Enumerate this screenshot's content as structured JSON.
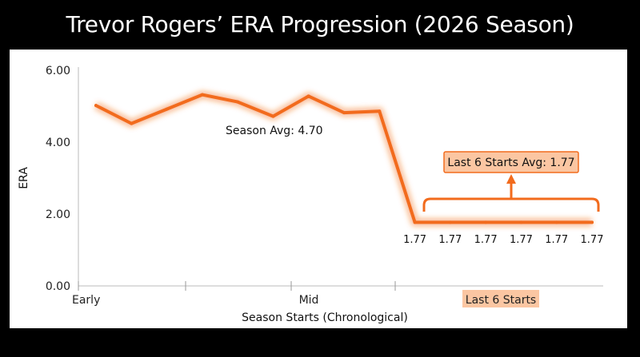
{
  "title": "Trevor Rogers’ ERA Progression (2026 Season)",
  "colors": {
    "line": "#f26b1d",
    "highlight_fill": "#fbc6a2",
    "highlight_stroke": "#f26b1d",
    "background": "#000000",
    "panel": "#ffffff"
  },
  "chart_data": {
    "type": "line",
    "title": "Trevor Rogers’ ERA Progression (2026 Season)",
    "xlabel": "Season Starts (Chronological)",
    "ylabel": "ERA",
    "ylim": [
      0,
      6
    ],
    "yticks": [
      "0.00",
      "2.00",
      "4.00",
      "6.00"
    ],
    "xtick_labels": [
      "Early",
      "Mid",
      "Last 6 Starts"
    ],
    "grid": false,
    "series": [
      {
        "values": [
          5.02,
          4.52,
          4.92,
          5.32,
          5.12,
          4.72,
          5.28,
          4.82,
          4.86,
          1.77,
          1.77,
          1.77,
          1.77,
          1.77,
          1.77
        ]
      }
    ],
    "point_labels": [
      "1.77",
      "1.77",
      "1.77",
      "1.77",
      "1.77",
      "1.77"
    ],
    "annotations": {
      "season_avg": "Season Avg: 4.70",
      "last6_avg": "Last 6 Starts Avg: 1.77"
    }
  }
}
